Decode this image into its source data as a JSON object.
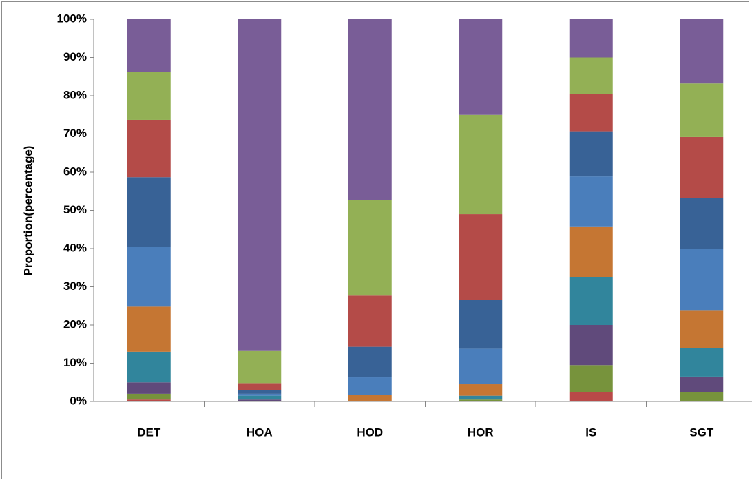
{
  "chart_data": {
    "type": "bar",
    "stacked": true,
    "title": "",
    "xlabel": "",
    "ylabel": "Proportion(percentage)",
    "ylim": [
      0,
      100
    ],
    "y_ticks": [
      "0%",
      "10%",
      "20%",
      "30%",
      "40%",
      "50%",
      "60%",
      "70%",
      "80%",
      "90%",
      "100%"
    ],
    "grid": false,
    "legend": "none",
    "categories": [
      "DET",
      "HOA",
      "HOD",
      "HOR",
      "IS",
      "SGT"
    ],
    "series": [
      {
        "color": "#b94a48",
        "values": [
          0.5,
          0.0,
          0.0,
          0.0,
          2.5,
          0.0
        ]
      },
      {
        "color": "#77933c",
        "values": [
          1.5,
          0.0,
          0.0,
          0.5,
          7.0,
          2.5
        ]
      },
      {
        "color": "#604a7b",
        "values": [
          3.0,
          0.5,
          0.0,
          0.0,
          10.5,
          4.0
        ]
      },
      {
        "color": "#31859c",
        "values": [
          8.0,
          1.0,
          0.0,
          1.0,
          12.5,
          7.5
        ]
      },
      {
        "color": "#c57633",
        "values": [
          11.8,
          0.0,
          1.8,
          3.0,
          13.3,
          9.9
        ]
      },
      {
        "color": "#4a7ebb",
        "values": [
          15.7,
          0.5,
          4.5,
          9.3,
          13.1,
          16.1
        ]
      },
      {
        "color": "#386296",
        "values": [
          18.2,
          1.0,
          8.0,
          12.7,
          11.8,
          13.2
        ]
      },
      {
        "color": "#b44b48",
        "values": [
          15.0,
          1.8,
          13.4,
          22.5,
          9.8,
          16.0
        ]
      },
      {
        "color": "#93b055",
        "values": [
          12.5,
          8.4,
          25.0,
          26.0,
          9.5,
          14.0
        ]
      },
      {
        "color": "#795d97",
        "values": [
          13.8,
          86.8,
          47.3,
          25.0,
          10.0,
          16.8
        ]
      }
    ]
  }
}
